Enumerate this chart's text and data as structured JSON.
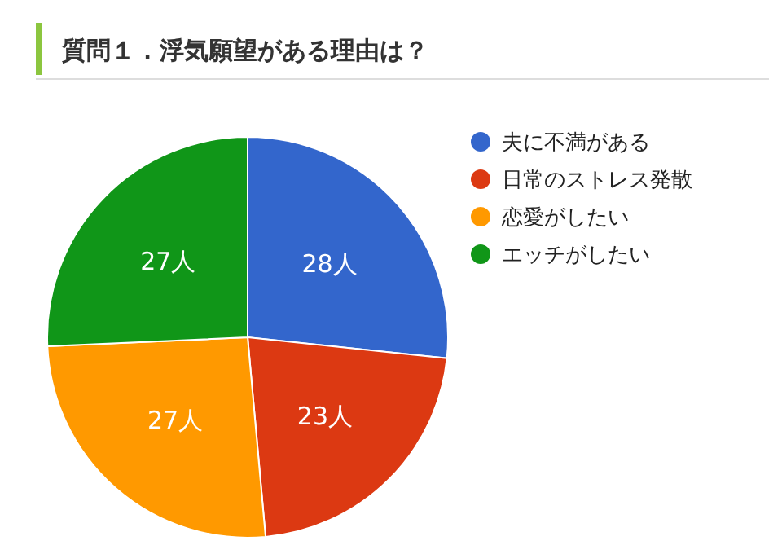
{
  "chart_data": {
    "type": "pie",
    "title": "質問１．浮気願望がある理由は？",
    "categories": [
      "夫に不満がある",
      "日常のストレス発散",
      "恋愛がしたい",
      "エッチがしたい"
    ],
    "values": [
      28,
      23,
      27,
      27
    ],
    "value_labels": [
      "28人",
      "23人",
      "27人",
      "27人"
    ],
    "colors": [
      "#3366cc",
      "#dc3912",
      "#ff9900",
      "#109618"
    ],
    "legend": "right"
  }
}
